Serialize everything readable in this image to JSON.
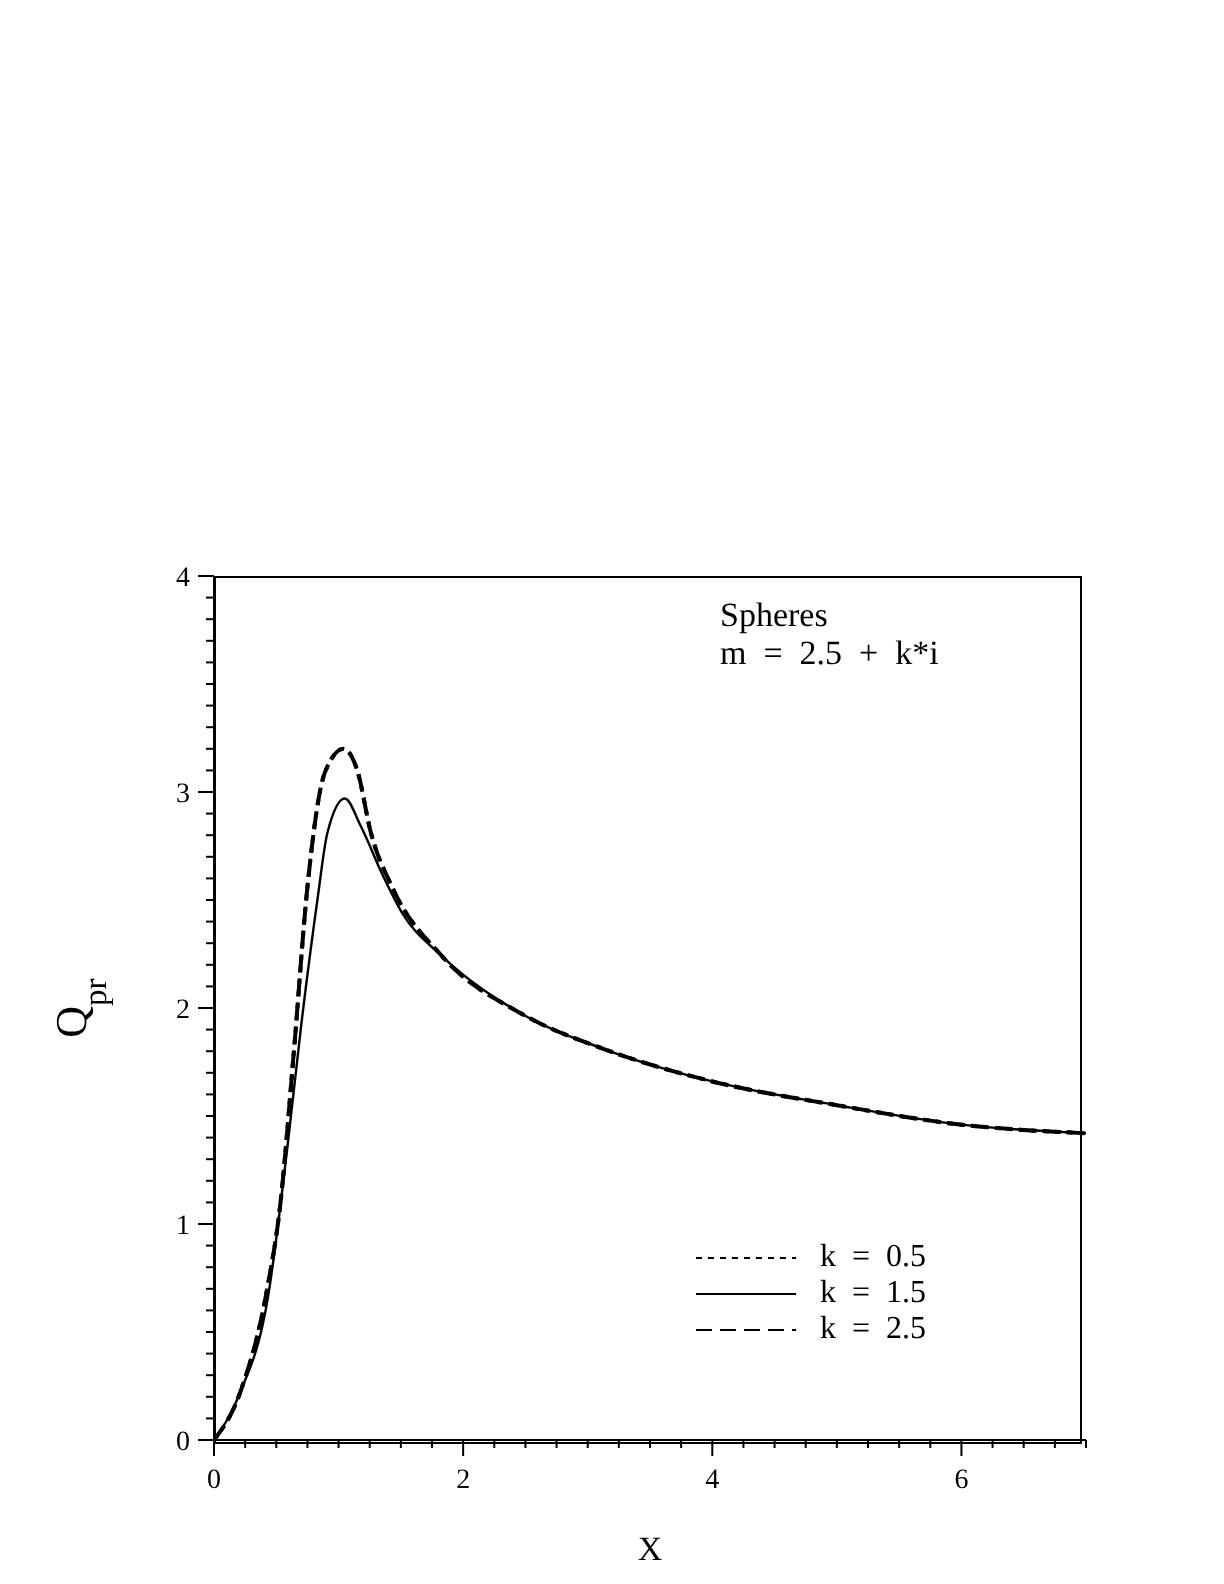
{
  "chart_data": {
    "type": "line",
    "xlabel": "X",
    "ylabel": "Q$_{pr}$",
    "annotations": [
      "Spheres",
      "m  =  2.5  +  k*i"
    ],
    "xlim": [
      0,
      7
    ],
    "ylim": [
      0,
      4
    ],
    "xticks": [
      0,
      {
        "value": 0.25,
        "label": null
      },
      {
        "value": 0.5,
        "label": null
      },
      {
        "value": 0.75,
        "label": null
      },
      {
        "value": 1,
        "label": null
      },
      {
        "value": 1.25,
        "label": null
      },
      {
        "value": 1.5,
        "label": null
      },
      {
        "value": 1.75,
        "label": null
      },
      2,
      {
        "value": 2.25,
        "label": null
      },
      {
        "value": 2.5,
        "label": null
      },
      {
        "value": 2.75,
        "label": null
      },
      {
        "value": 3,
        "label": null
      },
      {
        "value": 3.25,
        "label": null
      },
      {
        "value": 3.5,
        "label": null
      },
      {
        "value": 3.75,
        "label": null
      },
      4,
      {
        "value": 4.25,
        "label": null
      },
      {
        "value": 4.5,
        "label": null
      },
      {
        "value": 4.75,
        "label": null
      },
      {
        "value": 5,
        "label": null
      },
      {
        "value": 5.25,
        "label": null
      },
      {
        "value": 5.5,
        "label": null
      },
      {
        "value": 5.75,
        "label": null
      },
      6,
      {
        "value": 6.25,
        "label": null
      },
      {
        "value": 6.5,
        "label": null
      },
      {
        "value": 6.75,
        "label": null
      },
      {
        "value": 7,
        "label": null
      }
    ],
    "yticks": [
      0,
      {
        "value": 0.1,
        "label": null
      },
      {
        "value": 0.2,
        "label": null
      },
      {
        "value": 0.3,
        "label": null
      },
      {
        "value": 0.4,
        "label": null
      },
      {
        "value": 0.5,
        "label": null
      },
      {
        "value": 0.6,
        "label": null
      },
      {
        "value": 0.7,
        "label": null
      },
      {
        "value": 0.8,
        "label": null
      },
      {
        "value": 0.9,
        "label": null
      },
      1,
      {
        "value": 1.1,
        "label": null
      },
      {
        "value": 1.2,
        "label": null
      },
      {
        "value": 1.3,
        "label": null
      },
      {
        "value": 1.4,
        "label": null
      },
      {
        "value": 1.5,
        "label": null
      },
      {
        "value": 1.6,
        "label": null
      },
      {
        "value": 1.7,
        "label": null
      },
      {
        "value": 1.8,
        "label": null
      },
      {
        "value": 1.9,
        "label": null
      },
      2,
      {
        "value": 2.1,
        "label": null
      },
      {
        "value": 2.2,
        "label": null
      },
      {
        "value": 2.3,
        "label": null
      },
      {
        "value": 2.4,
        "label": null
      },
      {
        "value": 2.5,
        "label": null
      },
      {
        "value": 2.6,
        "label": null
      },
      {
        "value": 2.7,
        "label": null
      },
      {
        "value": 2.8,
        "label": null
      },
      {
        "value": 2.9,
        "label": null
      },
      3,
      {
        "value": 3.1,
        "label": null
      },
      {
        "value": 3.2,
        "label": null
      },
      {
        "value": 3.3,
        "label": null
      },
      {
        "value": 3.4,
        "label": null
      },
      {
        "value": 3.5,
        "label": null
      },
      {
        "value": 3.6,
        "label": null
      },
      {
        "value": 3.7,
        "label": null
      },
      {
        "value": 3.8,
        "label": null
      },
      {
        "value": 3.9,
        "label": null
      },
      4
    ],
    "grid": false,
    "legend": "bottom right",
    "marker": "none",
    "series": [
      {
        "name": "k  =  0.5",
        "color": "#000000",
        "line_style": "dotted",
        "x": [
          0,
          0.21,
          0.43,
          0.53,
          0.64,
          0.75,
          0.89,
          1.04,
          1.15,
          1.26,
          1.43,
          1.83,
          2.48,
          3.13,
          4,
          5,
          6,
          7
        ],
        "values": [
          0,
          0.22,
          0.71,
          1.08,
          1.79,
          2.56,
          3.09,
          3.2,
          3.1,
          2.81,
          2.56,
          2.24,
          1.97,
          1.81,
          1.66,
          1.55,
          1.46,
          1.42
        ]
      },
      {
        "name": "k  =  1.5",
        "color": "#000000",
        "line_style": "solid",
        "x": [
          0,
          0.21,
          0.43,
          0.59,
          0.7,
          0.83,
          0.91,
          1.05,
          1.18,
          1.35,
          1.51,
          1.83,
          2.48,
          3.13,
          4,
          5,
          6,
          7
        ],
        "values": [
          0,
          0.22,
          0.65,
          1.36,
          1.92,
          2.5,
          2.81,
          2.97,
          2.84,
          2.62,
          2.44,
          2.24,
          1.97,
          1.81,
          1.66,
          1.55,
          1.46,
          1.42
        ]
      },
      {
        "name": "k  =  2.5",
        "color": "#000000",
        "line_style": "dashed",
        "x": [
          0,
          0.21,
          0.43,
          0.53,
          0.64,
          0.75,
          0.89,
          1.04,
          1.15,
          1.26,
          1.43,
          1.83,
          2.48,
          3.13,
          4,
          5,
          6,
          7
        ],
        "values": [
          0,
          0.22,
          0.71,
          1.08,
          1.79,
          2.56,
          3.09,
          3.2,
          3.1,
          2.81,
          2.56,
          2.24,
          1.97,
          1.81,
          1.66,
          1.55,
          1.46,
          1.42
        ]
      }
    ]
  }
}
